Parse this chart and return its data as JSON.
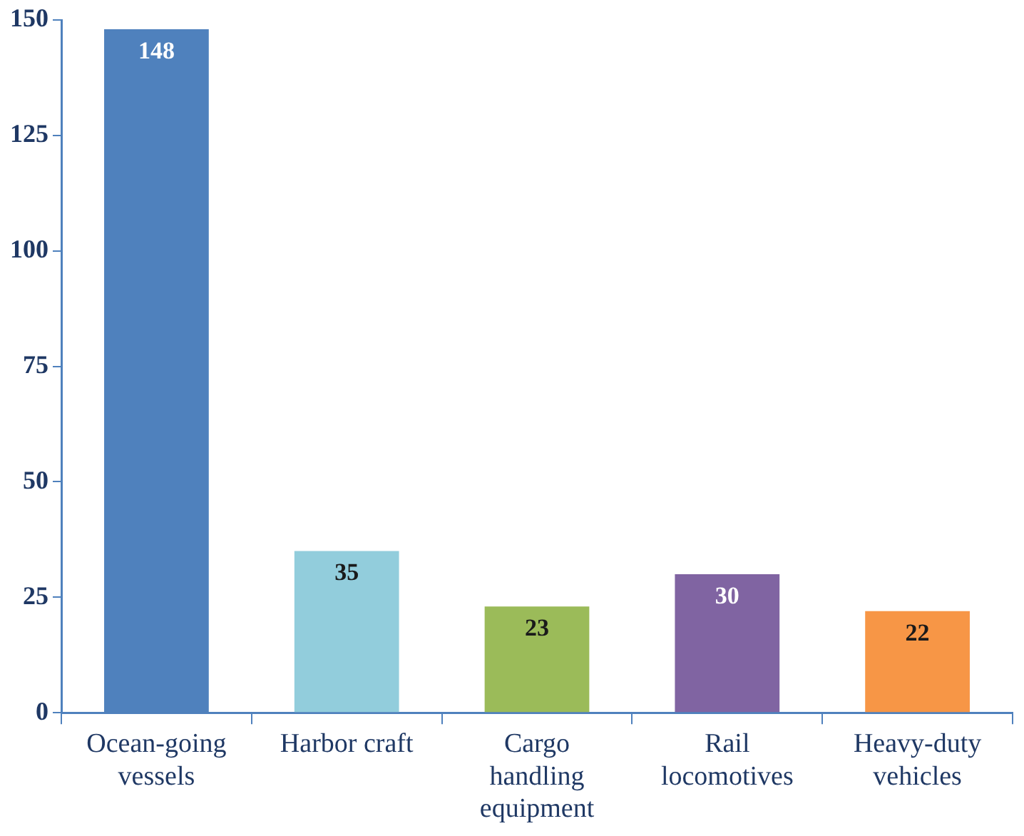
{
  "chart_data": {
    "type": "bar",
    "categories": [
      "Ocean-going vessels",
      "Harbor craft",
      "Cargo handling equipment",
      "Rail locomotives",
      "Heavy-duty vehicles"
    ],
    "values": [
      148,
      35,
      23,
      30,
      22
    ],
    "colors": [
      "#4f81bd",
      "#92cddc",
      "#9bbb59",
      "#8064a2",
      "#f79646"
    ],
    "ylim": [
      0,
      150
    ],
    "yticks": [
      0,
      25,
      50,
      75,
      100,
      125,
      150
    ],
    "data_labels": true,
    "grid": false,
    "legend": false
  }
}
